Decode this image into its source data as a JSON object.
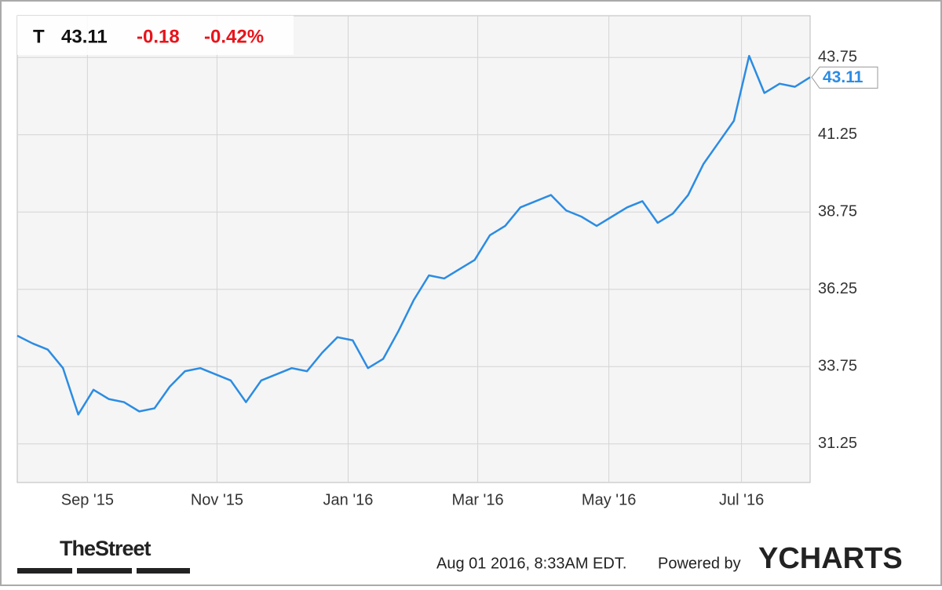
{
  "chart_data": {
    "type": "line",
    "ticker": "T",
    "last": "43.11",
    "change": "-0.18",
    "change_percent": "-0.42%",
    "series": [
      {
        "name": "T",
        "color": "#2b8ce3",
        "values": [
          34.75,
          34.5,
          34.3,
          33.7,
          32.2,
          33.0,
          32.7,
          32.6,
          32.3,
          32.4,
          33.1,
          33.6,
          33.7,
          33.5,
          33.3,
          32.6,
          33.3,
          33.5,
          33.7,
          33.6,
          34.2,
          34.7,
          34.6,
          33.7,
          34.0,
          34.9,
          35.9,
          36.7,
          36.6,
          36.9,
          37.2,
          38.0,
          38.3,
          38.9,
          39.1,
          39.3,
          38.8,
          38.6,
          38.3,
          38.6,
          38.9,
          39.1,
          38.4,
          38.7,
          39.3,
          40.3,
          41.0,
          41.7,
          43.8,
          42.6,
          42.9,
          42.8,
          43.11
        ]
      }
    ],
    "xlim": [
      0,
      52
    ],
    "xticks": [
      {
        "value": 4.6,
        "label": "Sep '15"
      },
      {
        "value": 13.1,
        "label": "Nov '15"
      },
      {
        "value": 21.7,
        "label": "Jan '16"
      },
      {
        "value": 30.2,
        "label": "Mar '16"
      },
      {
        "value": 38.8,
        "label": "May '16"
      },
      {
        "value": 47.5,
        "label": "Jul '16"
      }
    ],
    "ylim": [
      30,
      45.1
    ],
    "yticks": [
      31.25,
      33.75,
      36.25,
      38.75,
      41.25,
      43.75
    ],
    "grid": true,
    "source": "TheStreet",
    "timestamp": "Aug 01 2016, 8:33AM EDT.",
    "powered_by": "Powered by",
    "brand": "YCHARTS"
  }
}
